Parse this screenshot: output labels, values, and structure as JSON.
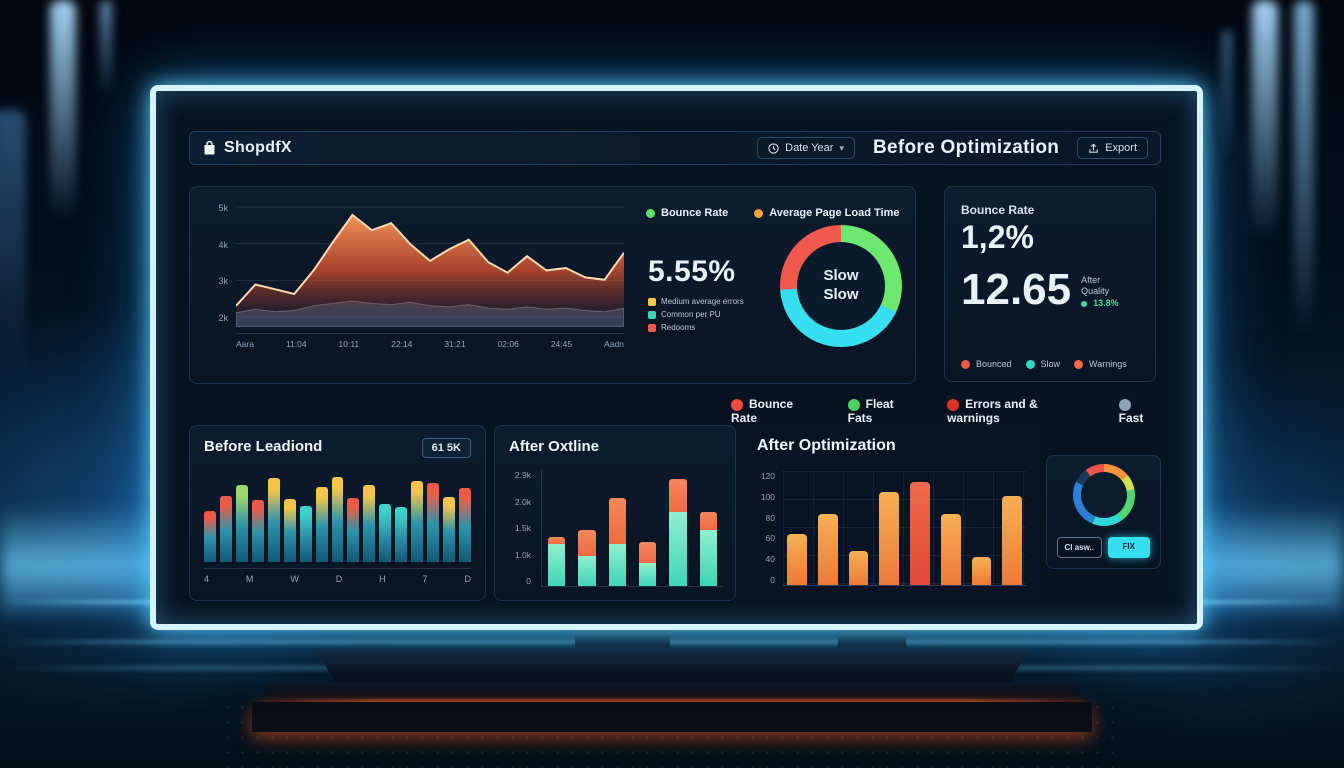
{
  "header": {
    "logo": "ShopdfX",
    "date_button": "Date Year",
    "title": "Before Optimization",
    "export_button": "Export"
  },
  "overview": {
    "legend": [
      {
        "label": "Bounce Rate",
        "color": "#5fe06a"
      },
      {
        "label": "Average Page Load Time",
        "color": "#f5a83a"
      }
    ],
    "kpi_value": "5.55%",
    "kpi_legend": [
      {
        "label": "Medium average errors",
        "color": "#f2c94c"
      },
      {
        "label": "Common per PU",
        "color": "#3fd4b4"
      },
      {
        "label": "Redooms",
        "color": "#ef5a4a"
      }
    ],
    "donut_center_line1": "Slow",
    "donut_center_line2": "Slow",
    "y_labels": [
      "5k",
      "4k",
      "3k",
      "2k"
    ],
    "x_labels": [
      "Aara",
      "11:04",
      "10:11",
      "22:14",
      "31:21",
      "02:06",
      "24:45",
      "Aadn"
    ]
  },
  "kpi_panel": {
    "title": "Bounce Rate",
    "rate": "1,2%",
    "score": "12.65",
    "side_line1": "After",
    "side_line2": "Quality",
    "side_chip": "13.8%",
    "legend": [
      {
        "label": "Bounced",
        "color": "#ef5a4a"
      },
      {
        "label": "Slow",
        "color": "#2fd8c8"
      },
      {
        "label": "Warnings",
        "color": "#f0694a"
      }
    ]
  },
  "status_chips": [
    {
      "label": "Bounce Rate",
      "color": "#ef4a3a"
    },
    {
      "label": "Fleat Fats",
      "color": "#4ad05e"
    },
    {
      "label": "Errors and & warnings",
      "color": "#e0302a"
    },
    {
      "label": "Fast",
      "color": "#8fa6ba"
    }
  ],
  "before_panel": {
    "title": "Before Leadiond",
    "badge": "61 5K",
    "x_labels": [
      "4",
      "M",
      "W",
      "D",
      "H",
      "7",
      "D"
    ]
  },
  "after_outline_panel": {
    "title": "After Oxtline",
    "y_labels": [
      "2.9k",
      "2.0k",
      "1.5k",
      "1.0k",
      "0"
    ]
  },
  "after_opt_panel": {
    "title": "After Optimization",
    "y_labels": [
      "120",
      "100",
      "80",
      "60",
      "40",
      "0"
    ]
  },
  "mini_panel": {
    "button_left": "Cl asw..",
    "button_right": "FIX"
  },
  "chart_data": [
    {
      "id": "load-trend",
      "type": "area",
      "title": "Page load trend",
      "x_labels": [
        "Aara",
        "11:04",
        "10:11",
        "22:14",
        "31:21",
        "02:06",
        "24:45",
        "Aadn"
      ],
      "ylim": [
        0,
        1
      ],
      "grid": true,
      "series": [
        {
          "name": "Average Page Load Time",
          "color_top": "#ff9a5a",
          "color_bottom": "#c24a2c",
          "stroke": "#ffd9ae",
          "values": [
            0.18,
            0.36,
            0.32,
            0.28,
            0.48,
            0.72,
            0.95,
            0.82,
            0.88,
            0.7,
            0.56,
            0.66,
            0.74,
            0.55,
            0.46,
            0.6,
            0.48,
            0.5,
            0.42,
            0.4,
            0.63
          ]
        },
        {
          "name": "Bounce Rate",
          "fill": "rgba(110,150,190,0.40)",
          "stroke": "rgba(170,205,240,0.5)",
          "values": [
            0.12,
            0.15,
            0.13,
            0.14,
            0.18,
            0.2,
            0.22,
            0.2,
            0.19,
            0.21,
            0.18,
            0.17,
            0.19,
            0.16,
            0.15,
            0.17,
            0.15,
            0.16,
            0.14,
            0.13,
            0.16
          ]
        }
      ]
    },
    {
      "id": "status-donut",
      "type": "pie",
      "center_text": "Slow Slow",
      "slices": [
        {
          "label": "fast",
          "value": 32,
          "color": "#6ee76e"
        },
        {
          "label": "slow",
          "value": 42,
          "color": "#35dff0"
        },
        {
          "label": "bounced",
          "value": 26,
          "color": "#f05a4e"
        }
      ]
    },
    {
      "id": "before-bars",
      "type": "bar",
      "title": "Before Leadiond",
      "x_labels": [
        "4",
        "M",
        "W",
        "D",
        "H",
        "7",
        "D"
      ],
      "palette": {
        "red": "#ef5a48",
        "yellow": "#f4c54a",
        "green": "#9fd96b",
        "teal": "#3fd0c9"
      },
      "body_colors": [
        "#2d95aa",
        "#135777"
      ],
      "values": [
        [
          0.58,
          "red"
        ],
        [
          0.75,
          "red"
        ],
        [
          0.88,
          "green"
        ],
        [
          0.7,
          "red"
        ],
        [
          0.95,
          "yellow"
        ],
        [
          0.72,
          "yellow"
        ],
        [
          0.64,
          "teal"
        ],
        [
          0.85,
          "yellow"
        ],
        [
          0.97,
          "yellow"
        ],
        [
          0.73,
          "red"
        ],
        [
          0.88,
          "yellow"
        ],
        [
          0.66,
          "teal"
        ],
        [
          0.62,
          "teal"
        ],
        [
          0.92,
          "yellow"
        ],
        [
          0.9,
          "red"
        ],
        [
          0.74,
          "yellow"
        ],
        [
          0.84,
          "red"
        ]
      ]
    },
    {
      "id": "after-stacked",
      "type": "stacked-bar",
      "title": "After Oxtline",
      "y_labels": [
        "2.9k",
        "2.0k",
        "1.5k",
        "1.0k",
        "0"
      ],
      "colors": {
        "bottom": [
          "#8ff0d0",
          "#3fd4b4"
        ],
        "top": [
          "#f4885a",
          "#ef6a42"
        ]
      },
      "bars": [
        [
          0.36,
          0.06
        ],
        [
          0.26,
          0.22
        ],
        [
          0.36,
          0.4
        ],
        [
          0.2,
          0.18
        ],
        [
          0.64,
          0.28
        ],
        [
          0.48,
          0.16
        ]
      ]
    },
    {
      "id": "after-opt-bars",
      "type": "bar2",
      "title": "After Optimization",
      "y_labels": [
        "120",
        "100",
        "80",
        "60",
        "40",
        "0"
      ],
      "colors": {
        "orange": [
          "#f6b054",
          "#ee7a38"
        ],
        "red": [
          "#ee6a4e",
          "#e04938"
        ]
      },
      "values": [
        [
          0.45,
          "orange"
        ],
        [
          0.62,
          "orange"
        ],
        [
          0.3,
          "orange"
        ],
        [
          0.82,
          "orange"
        ],
        [
          0.9,
          "red"
        ],
        [
          0.62,
          "orange"
        ],
        [
          0.25,
          "orange"
        ],
        [
          0.78,
          "orange"
        ]
      ]
    },
    {
      "id": "mini-donut",
      "type": "pie",
      "slices": [
        {
          "label": "orange",
          "value": 14,
          "color": "#f5923e"
        },
        {
          "label": "lime",
          "value": 8,
          "color": "#cde04e"
        },
        {
          "label": "green",
          "value": 18,
          "color": "#51d66e"
        },
        {
          "label": "cyan",
          "value": 16,
          "color": "#2fd8d8"
        },
        {
          "label": "blue",
          "value": 26,
          "color": "#2b7fd4"
        },
        {
          "label": "steel",
          "value": 8,
          "color": "#1b3a5a"
        },
        {
          "label": "red",
          "value": 10,
          "color": "#e8544a"
        }
      ]
    }
  ]
}
